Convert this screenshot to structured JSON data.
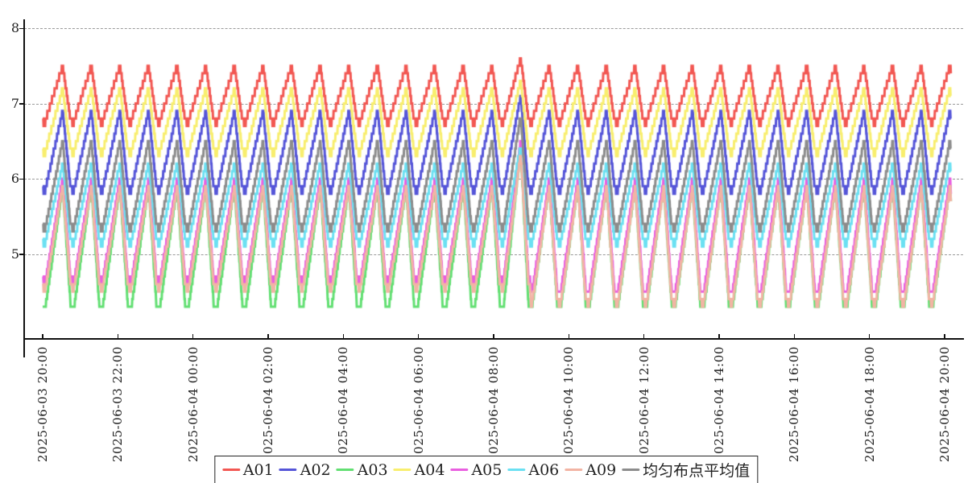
{
  "chart_data": {
    "type": "line",
    "title": "",
    "grid": "horizontal-dashed",
    "legend_position": "bottom-center",
    "x_axis": {
      "start": "2025-06-03 20:00",
      "end": "2025-06-04 20:00",
      "tick_interval_minutes": 120,
      "tick_labels": [
        "2025-06-03 20:00",
        "2025-06-03 22:00",
        "2025-06-04 00:00",
        "2025-06-04 02:00",
        "2025-06-04 04:00",
        "2025-06-04 06:00",
        "2025-06-04 08:00",
        "2025-06-04 10:00",
        "2025-06-04 12:00",
        "2025-06-04 14:00",
        "2025-06-04 16:00",
        "2025-06-04 18:00",
        "2025-06-04 20:00"
      ]
    },
    "y_axis": {
      "tick_values": [
        8,
        7,
        6,
        5
      ],
      "displayed_range": [
        3.9,
        8.15
      ]
    },
    "pattern": {
      "type": "stepped-periodic-peaks",
      "description": "All series oscillate in phase: quantized stepped rise to a peak roughly every 45 minutes, steep stepped fall, short flat trough with a small dip notch.",
      "period_minutes": 45.7,
      "first_peak_minute": 32,
      "total_minutes": 1450,
      "fall_fraction": 0.27,
      "flat_fraction": 0.15,
      "trough_dip": 0.1,
      "quantize_step": 0.1,
      "anomaly_cycle_index": 16,
      "anomaly_time_approx": "2025-06-04 08:55",
      "anomaly_description": "One cycle near 2025-06-04 09:00 spikes higher on all series; A05/A09 troughs drop slightly afterwards."
    },
    "series": [
      {
        "name": "A01",
        "color": "#f25752",
        "trough": 6.8,
        "peak": 7.5,
        "anomaly_peak": 7.6
      },
      {
        "name": "A02",
        "color": "#5555d8",
        "trough": 5.9,
        "peak": 6.9,
        "anomaly_peak": 7.1
      },
      {
        "name": "A03",
        "color": "#62df72",
        "trough": 4.35,
        "peak": 5.9,
        "anomaly_peak": 6.4
      },
      {
        "name": "A04",
        "color": "#f8ee6e",
        "trough": 6.4,
        "peak": 7.2,
        "anomaly_peak": 7.3
      },
      {
        "name": "A05",
        "color": "#e95fe0",
        "trough": 4.7,
        "peak": 6.0,
        "anomaly_peak": 6.5,
        "trough_after_anomaly": 4.55
      },
      {
        "name": "A06",
        "color": "#6be0f2",
        "trough": 5.2,
        "peak": 6.2,
        "anomaly_peak": 6.45
      },
      {
        "name": "A09",
        "color": "#f2b4a4",
        "trough": 4.6,
        "peak": 5.9,
        "anomaly_peak": 6.35,
        "trough_after_anomaly": 4.4
      },
      {
        "name": "均匀布点平均值",
        "color": "#8c8c8c",
        "trough": 5.4,
        "peak": 6.5,
        "anomaly_peak": 6.85
      }
    ]
  }
}
